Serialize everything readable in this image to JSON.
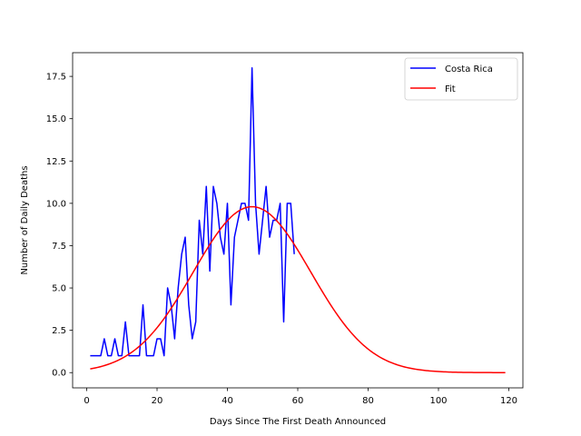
{
  "chart_data": {
    "type": "line",
    "title": "",
    "xlabel": "Days Since The First Death Announced",
    "ylabel": "Number of Daily Deaths",
    "xlim": [
      -4,
      124
    ],
    "ylim": [
      -0.9,
      18.9
    ],
    "xticks": [
      0,
      20,
      40,
      60,
      80,
      100,
      120
    ],
    "yticks": [
      0.0,
      2.5,
      5.0,
      7.5,
      10.0,
      12.5,
      15.0,
      17.5
    ],
    "xtick_labels": [
      "0",
      "20",
      "40",
      "60",
      "80",
      "100",
      "120"
    ],
    "ytick_labels": [
      "0.0",
      "2.5",
      "5.0",
      "7.5",
      "10.0",
      "12.5",
      "15.0",
      "17.5"
    ],
    "grid": false,
    "legend_position": "top-right",
    "series": [
      {
        "name": "Costa Rica",
        "color": "#0000ff",
        "x": [
          1,
          2,
          3,
          4,
          5,
          6,
          7,
          8,
          9,
          10,
          11,
          12,
          13,
          14,
          15,
          16,
          17,
          18,
          19,
          20,
          21,
          22,
          23,
          24,
          25,
          26,
          27,
          28,
          29,
          30,
          31,
          32,
          33,
          34,
          35,
          36,
          37,
          38,
          39,
          40,
          41,
          42,
          43,
          44,
          45,
          46,
          47,
          48,
          49,
          50,
          51,
          52,
          53,
          54,
          55,
          56,
          57,
          58,
          59
        ],
        "values": [
          1,
          1,
          1,
          1,
          2,
          1,
          1,
          2,
          1,
          1,
          3,
          1,
          1,
          1,
          1,
          4,
          1,
          1,
          1,
          2,
          2,
          1,
          5,
          4,
          2,
          5,
          7,
          8,
          4,
          2,
          3,
          9,
          7,
          11,
          6,
          11,
          10,
          8,
          7,
          10,
          4,
          8,
          9,
          10,
          10,
          9,
          18,
          10,
          7,
          9,
          11,
          8,
          9,
          9,
          10,
          3,
          10,
          10,
          7
        ]
      },
      {
        "name": "Fit",
        "color": "#ff0000",
        "curve": "gaussian",
        "peak_value": 9.8,
        "peak_day": 47,
        "sigma_days": 16.7,
        "x_range": [
          1,
          119
        ]
      }
    ]
  }
}
